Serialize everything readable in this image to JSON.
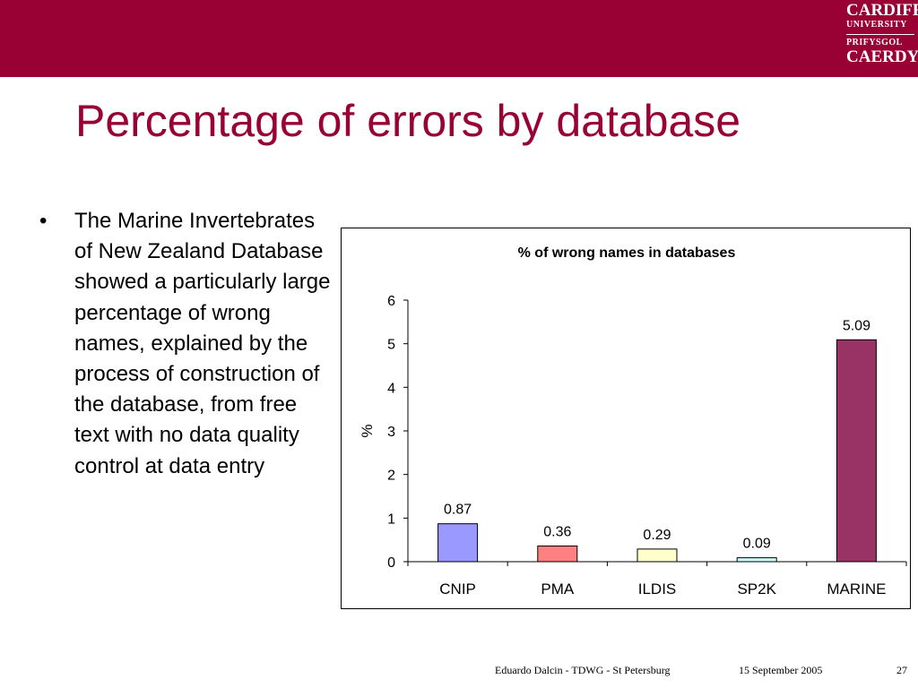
{
  "header": {
    "bar_color": "#990033",
    "logo": {
      "line1": "CARDIFF",
      "line2": "UNIVERSITY",
      "line3": "PRIFYSGOL",
      "line4": "CAERDYD"
    }
  },
  "slide": {
    "title": "Percentage of errors by database",
    "bullet_symbol": "•",
    "bullet": "The Marine Invertebrates of New Zealand Database showed a particularly large percentage of wrong names, explained by the process of construction of the database, from free text with no data quality control at data entry"
  },
  "chart_data": {
    "type": "bar",
    "title": "% of wrong names in databases",
    "xlabel": "",
    "ylabel": "%",
    "categories": [
      "CNIP",
      "PMA",
      "ILDIS",
      "SP2K",
      "MARINE"
    ],
    "values": [
      0.87,
      0.36,
      0.29,
      0.09,
      5.09
    ],
    "value_labels": [
      "0.87",
      "0.36",
      "0.29",
      "0.09",
      "5.09"
    ],
    "colors": [
      "#9999ff",
      "#ff8080",
      "#ffffcc",
      "#ccffff",
      "#993366"
    ],
    "ylim": [
      0,
      6
    ],
    "yticks": [
      0,
      1,
      2,
      3,
      4,
      5,
      6
    ],
    "grid": false,
    "legend": "none"
  },
  "footer": {
    "author": "Eduardo Dalcin - TDWG - St Petersburg",
    "date": "15 September 2005",
    "page": "27"
  }
}
